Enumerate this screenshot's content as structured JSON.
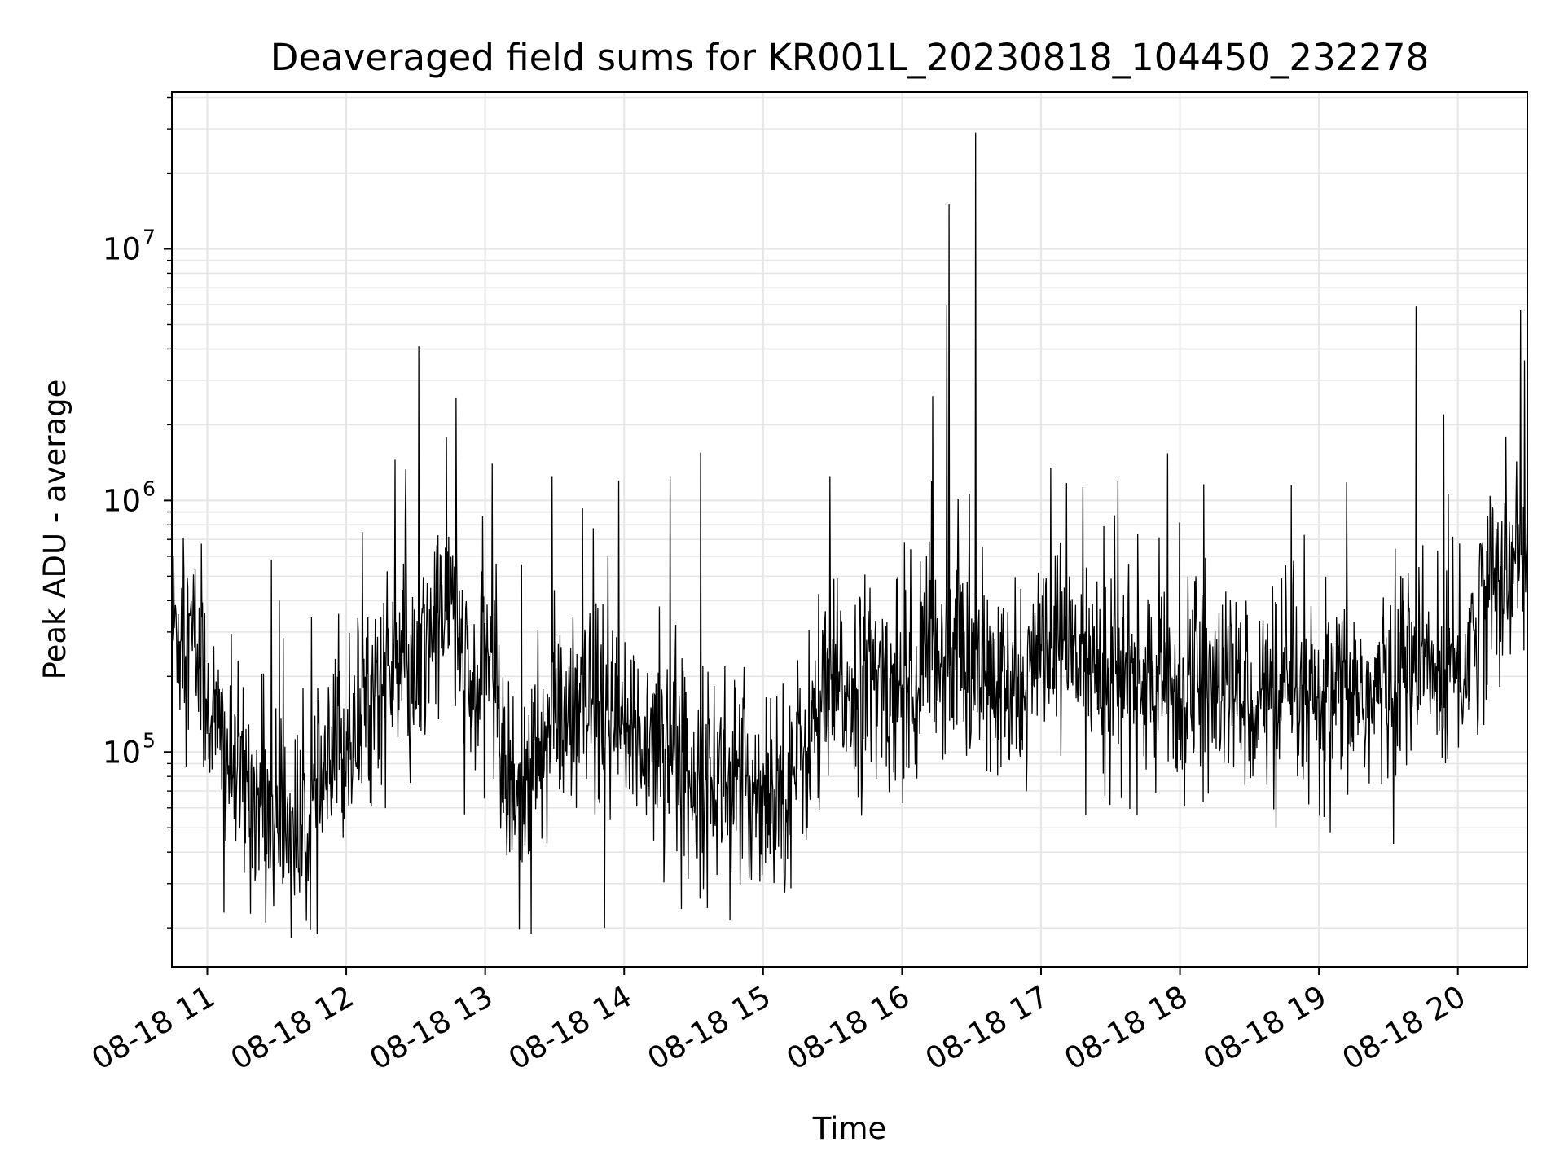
{
  "chart_data": {
    "type": "line",
    "title": "Deaveraged field sums for KR001L_20230818_104450_232278",
    "xlabel": "Time",
    "ylabel": "Peak ADU - average",
    "x_tick_labels": [
      "08-18 11",
      "08-18 12",
      "08-18 13",
      "08-18 14",
      "08-18 15",
      "08-18 16",
      "08-18 17",
      "08-18 18",
      "08-18 19",
      "08-18 20"
    ],
    "x_tick_hours": [
      11,
      12,
      13,
      14,
      15,
      16,
      17,
      18,
      19,
      20
    ],
    "xlim_hours": [
      10.745,
      20.5
    ],
    "yscale": "log",
    "ylim": [
      14000,
      42000000
    ],
    "y_major_ticks": [
      {
        "value": 100000,
        "base": "10",
        "exp": "5"
      },
      {
        "value": 1000000,
        "base": "10",
        "exp": "6"
      },
      {
        "value": 10000000,
        "base": "10",
        "exp": "7"
      }
    ],
    "grid": true,
    "legend": "none",
    "line_color": "#000000",
    "grid_color": "#e6e6e6",
    "series": [
      {
        "x_hours": [
          10.75,
          10.9,
          11.05,
          11.2,
          11.5,
          11.7,
          11.85,
          12.0,
          12.2,
          12.35,
          12.5,
          12.6,
          12.75,
          12.9,
          13.05,
          13.15,
          13.3,
          13.5,
          13.65,
          13.8,
          14.0,
          14.25,
          14.45,
          14.6,
          14.8,
          15.0,
          15.2,
          15.35,
          15.5,
          15.75,
          16.0,
          16.25,
          16.4,
          16.6,
          16.8,
          17.0,
          17.25,
          17.5,
          17.75,
          18.0,
          18.25,
          18.5,
          18.75,
          19.0,
          19.2,
          19.4,
          19.6,
          19.75,
          19.9,
          20.05,
          20.2,
          20.35,
          20.5
        ],
        "y_base": [
          320000,
          280000,
          130000,
          80000,
          55000,
          45000,
          75000,
          110000,
          180000,
          220000,
          160000,
          300000,
          420000,
          150000,
          280000,
          70000,
          75000,
          130000,
          130000,
          150000,
          110000,
          120000,
          85000,
          80000,
          75000,
          70000,
          80000,
          120000,
          170000,
          190000,
          180000,
          230000,
          270000,
          190000,
          160000,
          230000,
          260000,
          200000,
          190000,
          170000,
          180000,
          170000,
          160000,
          140000,
          180000,
          160000,
          220000,
          220000,
          190000,
          220000,
          440000,
          500000,
          600000
        ],
        "spikes": [
          [
            11.46,
            580000
          ],
          [
            11.52,
            400000
          ],
          [
            12.43,
            1330000
          ],
          [
            12.52,
            4100000
          ],
          [
            13.05,
            1400000
          ],
          [
            13.48,
            1250000
          ],
          [
            13.7,
            930000
          ],
          [
            13.96,
            1200000
          ],
          [
            14.33,
            1250000
          ],
          [
            14.55,
            1550000
          ],
          [
            15.48,
            1250000
          ],
          [
            16.22,
            2600000
          ],
          [
            16.32,
            6000000
          ],
          [
            16.34,
            15000000
          ],
          [
            16.53,
            29000000
          ],
          [
            17.07,
            1350000
          ],
          [
            17.45,
            790000
          ],
          [
            18.17,
            1160000
          ],
          [
            18.8,
            1150000
          ],
          [
            19.2,
            1180000
          ],
          [
            19.7,
            5900000
          ],
          [
            19.9,
            2200000
          ],
          [
            20.45,
            5700000
          ],
          [
            20.48,
            3600000
          ],
          [
            13.33,
            19000
          ],
          [
            13.86,
            20000
          ],
          [
            11.12,
            23000
          ],
          [
            15.15,
            28000
          ],
          [
            17.32,
            56000
          ],
          [
            19.08,
            48000
          ]
        ]
      }
    ]
  }
}
